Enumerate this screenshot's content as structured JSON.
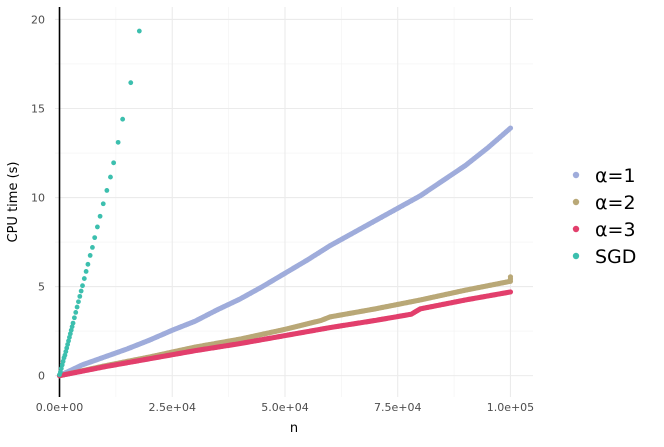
{
  "chart_data": {
    "type": "scatter",
    "xlabel": "n",
    "ylabel": "CPU time (s)",
    "xlim": [
      -1000,
      105000
    ],
    "ylim": [
      -1.2,
      20.7
    ],
    "x_ticks": [
      0,
      25000,
      50000,
      75000,
      100000
    ],
    "x_tick_labels": [
      "0.0e+00",
      "2.5e+04",
      "5.0e+04",
      "7.5e+04",
      "1.0e+05"
    ],
    "y_ticks": [
      0,
      5,
      10,
      15,
      20
    ],
    "y_tick_labels": [
      "0",
      "5",
      "10",
      "15",
      "20"
    ],
    "grid": true,
    "legend_position": "right",
    "series": [
      {
        "name": "α=1",
        "color": "#9FACDB",
        "points": [
          [
            0,
            0.0
          ],
          [
            5000,
            0.6
          ],
          [
            10000,
            1.05
          ],
          [
            15000,
            1.5
          ],
          [
            20000,
            2.0
          ],
          [
            25000,
            2.55
          ],
          [
            30000,
            3.05
          ],
          [
            35000,
            3.7
          ],
          [
            40000,
            4.3
          ],
          [
            45000,
            5.0
          ],
          [
            50000,
            5.75
          ],
          [
            55000,
            6.5
          ],
          [
            60000,
            7.3
          ],
          [
            65000,
            8.0
          ],
          [
            70000,
            8.7
          ],
          [
            75000,
            9.4
          ],
          [
            80000,
            10.1
          ],
          [
            85000,
            10.95
          ],
          [
            90000,
            11.8
          ],
          [
            95000,
            12.8
          ],
          [
            100000,
            13.9
          ]
        ]
      },
      {
        "name": "α=2",
        "color": "#B9A877",
        "points": [
          [
            0,
            0.0
          ],
          [
            10000,
            0.55
          ],
          [
            20000,
            1.05
          ],
          [
            30000,
            1.6
          ],
          [
            40000,
            2.05
          ],
          [
            50000,
            2.6
          ],
          [
            58000,
            3.1
          ],
          [
            60000,
            3.3
          ],
          [
            70000,
            3.75
          ],
          [
            80000,
            4.25
          ],
          [
            90000,
            4.8
          ],
          [
            100000,
            5.3
          ],
          [
            100000,
            5.55
          ]
        ]
      },
      {
        "name": "α=3",
        "color": "#E23F6C",
        "points": [
          [
            0,
            0.0
          ],
          [
            10000,
            0.5
          ],
          [
            20000,
            0.95
          ],
          [
            30000,
            1.4
          ],
          [
            40000,
            1.8
          ],
          [
            50000,
            2.25
          ],
          [
            60000,
            2.7
          ],
          [
            70000,
            3.1
          ],
          [
            78000,
            3.45
          ],
          [
            80000,
            3.75
          ],
          [
            90000,
            4.25
          ],
          [
            100000,
            4.7
          ]
        ]
      },
      {
        "name": "SGD",
        "color": "#3CBFAE",
        "points": [
          [
            0,
            0.05
          ],
          [
            200,
            0.2
          ],
          [
            400,
            0.4
          ],
          [
            600,
            0.6
          ],
          [
            800,
            0.8
          ],
          [
            1000,
            1.0
          ],
          [
            1200,
            1.15
          ],
          [
            1400,
            1.35
          ],
          [
            1600,
            1.55
          ],
          [
            1800,
            1.75
          ],
          [
            2000,
            1.95
          ],
          [
            2200,
            2.15
          ],
          [
            2400,
            2.35
          ],
          [
            2600,
            2.55
          ],
          [
            2800,
            2.75
          ],
          [
            3000,
            2.95
          ],
          [
            3300,
            3.25
          ],
          [
            3600,
            3.55
          ],
          [
            3900,
            3.85
          ],
          [
            4200,
            4.15
          ],
          [
            4500,
            4.45
          ],
          [
            4800,
            4.75
          ],
          [
            5100,
            5.05
          ],
          [
            5500,
            5.45
          ],
          [
            5900,
            5.85
          ],
          [
            6300,
            6.25
          ],
          [
            6800,
            6.75
          ],
          [
            7300,
            7.2
          ],
          [
            7800,
            7.75
          ],
          [
            8400,
            8.35
          ],
          [
            9000,
            8.95
          ],
          [
            9700,
            9.65
          ],
          [
            10500,
            10.4
          ],
          [
            11300,
            11.15
          ],
          [
            12000,
            11.95
          ],
          [
            13000,
            13.1
          ],
          [
            14000,
            14.4
          ],
          [
            15800,
            16.45
          ],
          [
            17700,
            19.35
          ]
        ]
      }
    ]
  }
}
